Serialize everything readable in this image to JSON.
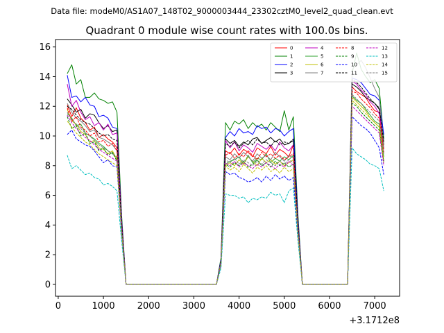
{
  "chart_data": {
    "type": "line",
    "suptitle": "Data file: modeM0/AS1A07_148T02_9000003444_23302cztM0_level2_quad_clean.evt",
    "title": "Quadrant 0 module wise count rates with 100.0s bins.",
    "xlabel": "",
    "ylabel": "",
    "x_offset_label": "+3.1712e8",
    "xlim": [
      -60,
      7550
    ],
    "ylim": [
      -0.8,
      16.5
    ],
    "xticks": [
      0,
      1000,
      2000,
      3000,
      4000,
      5000,
      6000,
      7000
    ],
    "yticks": [
      0,
      2,
      4,
      6,
      8,
      10,
      12,
      14,
      16
    ],
    "legend_position": "upper right",
    "legend_columns": 4,
    "x": [
      200,
      300,
      400,
      500,
      600,
      700,
      800,
      900,
      1000,
      1100,
      1200,
      1300,
      1400,
      1500,
      1600,
      1700,
      1800,
      1900,
      2000,
      2100,
      2200,
      2300,
      2400,
      2500,
      2600,
      2700,
      2800,
      2900,
      3000,
      3100,
      3200,
      3300,
      3400,
      3500,
      3600,
      3700,
      3800,
      3900,
      4000,
      4100,
      4200,
      4300,
      4400,
      4500,
      4600,
      4700,
      4800,
      4900,
      5000,
      5100,
      5200,
      5300,
      5400,
      5500,
      5600,
      5700,
      5800,
      5900,
      6000,
      6100,
      6200,
      6300,
      6400,
      6500,
      6600,
      6700,
      6800,
      6900,
      7000,
      7100,
      7200
    ],
    "series": [
      {
        "name": "0",
        "color": "#ff0000",
        "dash": "solid",
        "values": [
          12.1,
          11.3,
          11.9,
          11.2,
          10.9,
          10.4,
          10.6,
          9.9,
          10.1,
          9.8,
          9.6,
          9.2,
          4.0,
          0,
          0,
          0,
          0,
          0,
          0,
          0,
          0,
          0,
          0,
          0,
          0,
          0,
          0,
          0,
          0,
          0,
          0,
          0,
          0,
          0,
          1.5,
          9.0,
          8.8,
          9.2,
          8.7,
          9.1,
          8.9,
          8.6,
          9.2,
          9.0,
          8.8,
          9.3,
          8.7,
          9.1,
          8.9,
          8.6,
          9.4,
          4.0,
          0,
          0,
          0,
          0,
          0,
          0,
          0,
          0,
          0,
          0,
          0,
          13.3,
          13.0,
          12.8,
          12.6,
          12.1,
          11.7,
          11.6,
          9.1
        ]
      },
      {
        "name": "1",
        "color": "#008000",
        "dash": "solid",
        "values": [
          14.2,
          14.8,
          13.5,
          13.8,
          12.6,
          12.6,
          12.9,
          12.5,
          12.4,
          12.2,
          12.3,
          11.6,
          4.8,
          0,
          0,
          0,
          0,
          0,
          0,
          0,
          0,
          0,
          0,
          0,
          0,
          0,
          0,
          0,
          0,
          0,
          0,
          0,
          0,
          0,
          1.8,
          10.9,
          10.4,
          11.0,
          10.8,
          11.1,
          10.5,
          10.9,
          10.6,
          10.8,
          10.4,
          10.9,
          10.6,
          10.3,
          11.7,
          10.4,
          11.3,
          4.8,
          0,
          0,
          0,
          0,
          0,
          0,
          0,
          0,
          0,
          0,
          0,
          14.2,
          15.6,
          14.5,
          14.0,
          13.6,
          13.8,
          13.2,
          9.8
        ]
      },
      {
        "name": "2",
        "color": "#0000ff",
        "dash": "solid",
        "values": [
          14.1,
          12.6,
          12.7,
          12.3,
          12.6,
          12.1,
          12.0,
          11.3,
          11.4,
          11.2,
          10.6,
          10.5,
          4.5,
          0,
          0,
          0,
          0,
          0,
          0,
          0,
          0,
          0,
          0,
          0,
          0,
          0,
          0,
          0,
          0,
          0,
          0,
          0,
          0,
          0,
          1.7,
          9.9,
          10.3,
          10.0,
          10.5,
          10.2,
          10.3,
          10.1,
          10.7,
          10.5,
          10.6,
          10.2,
          10.5,
          10.4,
          10.0,
          10.3,
          10.5,
          4.5,
          0,
          0,
          0,
          0,
          0,
          0,
          0,
          0,
          0,
          0,
          0,
          13.9,
          13.8,
          13.6,
          13.2,
          12.8,
          12.7,
          12.4,
          10.1
        ]
      },
      {
        "name": "3",
        "color": "#000000",
        "dash": "solid",
        "values": [
          12.5,
          12.1,
          11.6,
          11.8,
          11.2,
          11.5,
          11.4,
          10.9,
          10.5,
          10.7,
          10.3,
          10.4,
          4.3,
          0,
          0,
          0,
          0,
          0,
          0,
          0,
          0,
          0,
          0,
          0,
          0,
          0,
          0,
          0,
          0,
          0,
          0,
          0,
          0,
          0,
          1.6,
          9.8,
          9.5,
          9.7,
          9.3,
          9.6,
          9.4,
          9.8,
          9.9,
          9.5,
          9.7,
          9.9,
          9.6,
          9.8,
          9.4,
          9.5,
          9.7,
          4.2,
          0,
          0,
          0,
          0,
          0,
          0,
          0,
          0,
          0,
          0,
          0,
          13.5,
          13.3,
          13.0,
          12.6,
          12.4,
          12.2,
          11.8,
          9.4
        ]
      },
      {
        "name": "4",
        "color": "#bf00bf",
        "dash": "solid",
        "values": [
          13.5,
          12.0,
          12.4,
          11.6,
          11.1,
          11.3,
          10.7,
          10.9,
          10.4,
          10.8,
          10.1,
          10.2,
          4.4,
          0,
          0,
          0,
          0,
          0,
          0,
          0,
          0,
          0,
          0,
          0,
          0,
          0,
          0,
          0,
          0,
          0,
          0,
          0,
          0,
          0,
          1.6,
          9.7,
          9.2,
          9.6,
          9.0,
          9.4,
          9.2,
          8.9,
          9.5,
          9.3,
          9.1,
          9.4,
          9.0,
          9.6,
          9.2,
          9.0,
          9.4,
          4.2,
          0,
          0,
          0,
          0,
          0,
          0,
          0,
          0,
          0,
          0,
          0,
          13.7,
          13.5,
          13.1,
          12.8,
          12.3,
          12.0,
          11.5,
          9.6
        ]
      },
      {
        "name": "5",
        "color": "#2ca02c",
        "dash": "solid",
        "values": [
          11.5,
          11.2,
          10.7,
          10.8,
          10.2,
          10.0,
          9.8,
          9.5,
          9.3,
          9.0,
          8.8,
          8.5,
          3.8,
          0,
          0,
          0,
          0,
          0,
          0,
          0,
          0,
          0,
          0,
          0,
          0,
          0,
          0,
          0,
          0,
          0,
          0,
          0,
          0,
          0,
          1.4,
          8.1,
          8.3,
          8.4,
          8.6,
          8.1,
          8.7,
          8.2,
          8.5,
          8.4,
          8.8,
          8.2,
          8.5,
          8.3,
          8.6,
          8.4,
          8.7,
          3.8,
          0,
          0,
          0,
          0,
          0,
          0,
          0,
          0,
          0,
          0,
          0,
          12.7,
          12.4,
          12.2,
          11.8,
          11.4,
          11.0,
          10.8,
          8.6
        ]
      },
      {
        "name": "6",
        "color": "#bfbf00",
        "dash": "solid",
        "values": [
          11.8,
          11.0,
          10.8,
          10.3,
          10.1,
          9.6,
          9.7,
          9.2,
          9.1,
          8.8,
          9.0,
          8.4,
          3.7,
          0,
          0,
          0,
          0,
          0,
          0,
          0,
          0,
          0,
          0,
          0,
          0,
          0,
          0,
          0,
          0,
          0,
          0,
          0,
          0,
          0,
          1.4,
          8.0,
          8.2,
          8.0,
          8.4,
          8.1,
          8.6,
          8.3,
          8.0,
          8.5,
          8.2,
          8.4,
          8.1,
          8.3,
          8.0,
          8.2,
          8.4,
          3.7,
          0,
          0,
          0,
          0,
          0,
          0,
          0,
          0,
          0,
          0,
          0,
          12.6,
          12.3,
          12.0,
          11.7,
          11.2,
          10.9,
          10.6,
          8.2
        ]
      },
      {
        "name": "7",
        "color": "#7f7f7f",
        "dash": "solid",
        "values": [
          12.2,
          11.6,
          11.2,
          11.0,
          10.7,
          10.3,
          10.4,
          9.9,
          9.8,
          9.6,
          9.4,
          9.0,
          4.0,
          0,
          0,
          0,
          0,
          0,
          0,
          0,
          0,
          0,
          0,
          0,
          0,
          0,
          0,
          0,
          0,
          0,
          0,
          0,
          0,
          0,
          1.5,
          8.6,
          8.4,
          8.8,
          8.5,
          8.9,
          8.6,
          8.3,
          8.8,
          8.5,
          8.7,
          8.4,
          8.9,
          8.6,
          8.3,
          8.7,
          8.5,
          3.9,
          0,
          0,
          0,
          0,
          0,
          0,
          0,
          0,
          0,
          0,
          0,
          14.5,
          14.8,
          15.1,
          14.6,
          13.9,
          13.2,
          12.6,
          9.2
        ]
      },
      {
        "name": "8",
        "color": "#ff0000",
        "dash": "dashed",
        "values": [
          11.9,
          11.0,
          11.3,
          10.6,
          10.4,
          10.0,
          10.2,
          9.6,
          9.7,
          9.3,
          9.5,
          9.0,
          3.9,
          0,
          0,
          0,
          0,
          0,
          0,
          0,
          0,
          0,
          0,
          0,
          0,
          0,
          0,
          0,
          0,
          0,
          0,
          0,
          0,
          0,
          1.5,
          8.7,
          8.9,
          8.5,
          8.8,
          8.6,
          9.0,
          8.7,
          8.4,
          8.9,
          8.6,
          8.8,
          8.5,
          8.7,
          8.4,
          8.6,
          8.8,
          3.9,
          0,
          0,
          0,
          0,
          0,
          0,
          0,
          0,
          0,
          0,
          0,
          13.0,
          12.9,
          12.5,
          12.2,
          11.9,
          11.5,
          11.2,
          8.9
        ]
      },
      {
        "name": "9",
        "color": "#008000",
        "dash": "dashed",
        "values": [
          11.3,
          10.5,
          10.7,
          10.0,
          10.2,
          9.5,
          9.6,
          9.0,
          9.2,
          8.7,
          8.9,
          8.3,
          3.6,
          0,
          0,
          0,
          0,
          0,
          0,
          0,
          0,
          0,
          0,
          0,
          0,
          0,
          0,
          0,
          0,
          0,
          0,
          0,
          0,
          0,
          1.4,
          8.1,
          7.9,
          8.2,
          8.0,
          8.3,
          7.9,
          8.1,
          8.4,
          8.0,
          8.2,
          7.9,
          8.3,
          8.0,
          8.2,
          7.9,
          8.1,
          3.6,
          0,
          0,
          0,
          0,
          0,
          0,
          0,
          0,
          0,
          0,
          0,
          12.2,
          12.0,
          11.6,
          11.3,
          11.0,
          10.7,
          10.4,
          8.3
        ]
      },
      {
        "name": "10",
        "color": "#0000ff",
        "dash": "dashed",
        "values": [
          10.1,
          10.4,
          9.8,
          9.6,
          9.4,
          9.3,
          9.0,
          8.6,
          8.2,
          8.4,
          8.0,
          7.9,
          3.5,
          0,
          0,
          0,
          0,
          0,
          0,
          0,
          0,
          0,
          0,
          0,
          0,
          0,
          0,
          0,
          0,
          0,
          0,
          0,
          0,
          0,
          1.3,
          7.6,
          7.4,
          7.5,
          7.2,
          7.1,
          6.9,
          7.0,
          7.2,
          6.9,
          7.3,
          7.0,
          7.4,
          7.1,
          7.3,
          7.0,
          7.2,
          3.3,
          0,
          0,
          0,
          0,
          0,
          0,
          0,
          0,
          0,
          0,
          0,
          11.3,
          11.0,
          10.7,
          10.5,
          10.2,
          9.7,
          9.2,
          7.4
        ]
      },
      {
        "name": "11",
        "color": "#000000",
        "dash": "dashed",
        "values": [
          12.0,
          11.8,
          11.4,
          11.1,
          10.9,
          10.8,
          10.5,
          10.2,
          10.0,
          10.1,
          9.8,
          9.7,
          4.2,
          0,
          0,
          0,
          0,
          0,
          0,
          0,
          0,
          0,
          0,
          0,
          0,
          0,
          0,
          0,
          0,
          0,
          0,
          0,
          0,
          0,
          1.6,
          9.5,
          9.3,
          9.6,
          9.2,
          9.5,
          9.7,
          9.4,
          9.8,
          9.5,
          9.6,
          9.3,
          9.7,
          9.4,
          9.6,
          9.5,
          9.8,
          4.1,
          0,
          0,
          0,
          0,
          0,
          0,
          0,
          0,
          0,
          0,
          0,
          13.8,
          13.6,
          13.3,
          12.9,
          12.5,
          12.2,
          11.9,
          9.6
        ]
      },
      {
        "name": "12",
        "color": "#bf00bf",
        "dash": "dashed",
        "values": [
          11.4,
          10.9,
          10.5,
          10.2,
          9.9,
          9.7,
          9.4,
          9.1,
          8.9,
          8.7,
          8.5,
          8.3,
          3.7,
          0,
          0,
          0,
          0,
          0,
          0,
          0,
          0,
          0,
          0,
          0,
          0,
          0,
          0,
          0,
          0,
          0,
          0,
          0,
          0,
          0,
          1.4,
          8.2,
          8.0,
          8.3,
          7.9,
          8.2,
          8.0,
          7.8,
          8.1,
          7.9,
          8.2,
          8.0,
          7.8,
          8.1,
          7.9,
          8.3,
          8.0,
          3.6,
          0,
          0,
          0,
          0,
          0,
          0,
          0,
          0,
          0,
          0,
          0,
          12.0,
          11.7,
          11.4,
          11.1,
          10.8,
          10.5,
          10.2,
          8.0
        ]
      },
      {
        "name": "13",
        "color": "#00bfbf",
        "dash": "dashed",
        "values": [
          8.7,
          7.8,
          8.0,
          7.7,
          7.4,
          7.5,
          7.2,
          7.1,
          6.7,
          6.8,
          6.6,
          6.3,
          3.0,
          0,
          0,
          0,
          0,
          0,
          0,
          0,
          0,
          0,
          0,
          0,
          0,
          0,
          0,
          0,
          0,
          0,
          0,
          0,
          0,
          0,
          1.1,
          6.1,
          6.0,
          6.0,
          5.8,
          5.9,
          5.5,
          5.8,
          5.7,
          5.9,
          5.8,
          6.2,
          6.0,
          6.1,
          5.5,
          6.3,
          6.5,
          3.0,
          0,
          0,
          0,
          0,
          0,
          0,
          0,
          0,
          0,
          0,
          0,
          9.2,
          8.8,
          8.6,
          8.4,
          8.1,
          8.0,
          7.8,
          6.3
        ]
      },
      {
        "name": "14",
        "color": "#bfbf00",
        "dash": "dashed",
        "values": [
          11.0,
          10.6,
          10.2,
          9.9,
          9.6,
          9.4,
          9.1,
          8.8,
          8.6,
          8.4,
          8.2,
          8.0,
          3.6,
          0,
          0,
          0,
          0,
          0,
          0,
          0,
          0,
          0,
          0,
          0,
          0,
          0,
          0,
          0,
          0,
          0,
          0,
          0,
          0,
          0,
          1.4,
          8.0,
          7.7,
          7.9,
          7.6,
          8.1,
          7.8,
          7.5,
          7.9,
          7.7,
          8.0,
          7.6,
          7.8,
          7.5,
          7.9,
          7.6,
          7.8,
          3.5,
          0,
          0,
          0,
          0,
          0,
          0,
          0,
          0,
          0,
          0,
          0,
          12.4,
          12.1,
          11.8,
          11.5,
          11.2,
          10.9,
          10.6,
          8.4
        ]
      },
      {
        "name": "15",
        "color": "#7f7f7f",
        "dash": "dashed",
        "values": [
          11.6,
          11.1,
          10.8,
          10.5,
          10.2,
          10.0,
          9.7,
          9.4,
          9.2,
          9.0,
          8.8,
          8.6,
          3.8,
          0,
          0,
          0,
          0,
          0,
          0,
          0,
          0,
          0,
          0,
          0,
          0,
          0,
          0,
          0,
          0,
          0,
          0,
          0,
          0,
          0,
          1.5,
          8.4,
          8.2,
          8.5,
          8.1,
          8.4,
          8.2,
          8.0,
          8.3,
          8.1,
          8.4,
          8.2,
          8.0,
          8.3,
          8.1,
          8.4,
          8.2,
          3.7,
          0,
          0,
          0,
          0,
          0,
          0,
          0,
          0,
          0,
          0,
          0,
          12.8,
          12.5,
          12.2,
          11.9,
          11.6,
          11.3,
          11.0,
          8.8
        ]
      }
    ]
  }
}
